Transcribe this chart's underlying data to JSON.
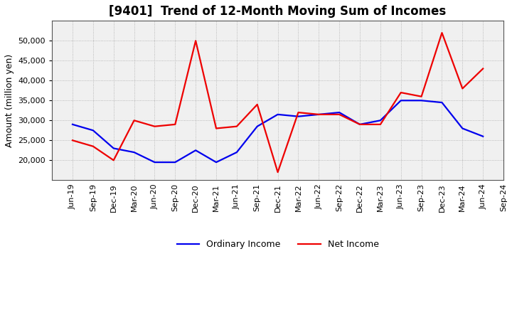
{
  "title": "[9401]  Trend of 12-Month Moving Sum of Incomes",
  "ylabel": "Amount (million yen)",
  "x_labels": [
    "Jun-19",
    "Sep-19",
    "Dec-19",
    "Mar-20",
    "Jun-20",
    "Sep-20",
    "Dec-20",
    "Mar-21",
    "Jun-21",
    "Sep-21",
    "Dec-21",
    "Mar-22",
    "Jun-22",
    "Sep-22",
    "Dec-22",
    "Mar-23",
    "Jun-23",
    "Sep-23",
    "Dec-23",
    "Mar-24",
    "Jun-24",
    "Sep-24"
  ],
  "ordinary_income": [
    29000,
    27500,
    23000,
    22000,
    19500,
    19500,
    22500,
    19500,
    22000,
    28500,
    31500,
    31000,
    31500,
    32000,
    29000,
    30000,
    35000,
    35000,
    34500,
    28000,
    26000,
    null
  ],
  "net_income": [
    25000,
    23500,
    20000,
    30000,
    28500,
    29000,
    50000,
    28000,
    28500,
    34000,
    17000,
    32000,
    31500,
    31500,
    29000,
    29000,
    37000,
    36000,
    52000,
    38000,
    43000,
    null
  ],
  "ordinary_income_color": "#0000ee",
  "net_income_color": "#ee0000",
  "plot_bg_color": "#f0f0f0",
  "fig_bg_color": "#ffffff",
  "grid_color": "#aaaaaa",
  "ylim": [
    15000,
    55000
  ],
  "yticks": [
    20000,
    25000,
    30000,
    35000,
    40000,
    45000,
    50000
  ],
  "legend_labels": [
    "Ordinary Income",
    "Net Income"
  ],
  "title_fontsize": 12,
  "ylabel_fontsize": 9,
  "tick_fontsize": 8
}
